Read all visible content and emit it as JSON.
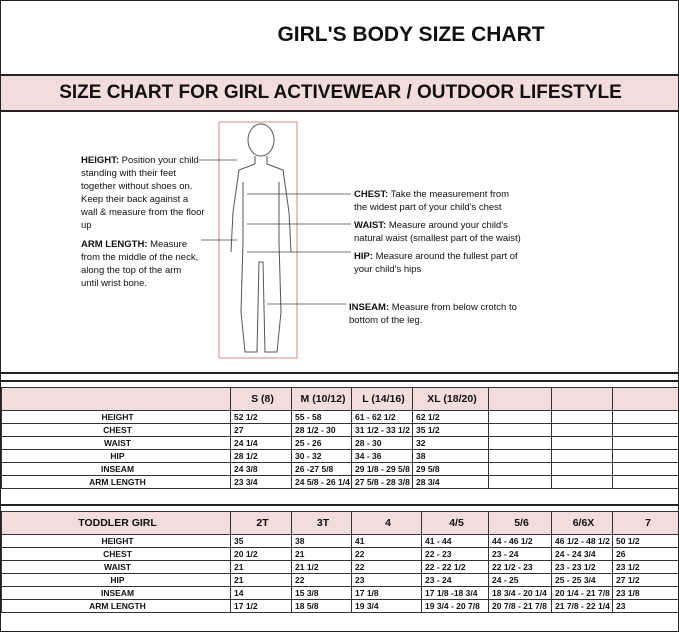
{
  "title": "GIRL'S BODY SIZE CHART",
  "banner": "SIZE CHART FOR GIRL ACTIVEWEAR / OUTDOOR LIFESTYLE",
  "notes": {
    "height": {
      "label": "HEIGHT:",
      "text": "Position your child standing with their feet together without shoes on. Keep their back against a wall & measure from the floor up"
    },
    "arm": {
      "label": "ARM LENGTH:",
      "text": "Measure from the middle of the neck, along the top of the arm until wrist bone."
    },
    "chest": {
      "label": "CHEST:",
      "text": "Take the measurement from the widest part of your child's chest"
    },
    "waist": {
      "label": "WAIST:",
      "text": "Measure around your child's natural waist (smallest part of the waist)"
    },
    "hip": {
      "label": "HIP:",
      "text": "Measure around the fullest part of your child's hips"
    },
    "inseam": {
      "label": "INSEAM:",
      "text": "Measure from below crotch to bottom of the leg."
    }
  },
  "girl_table": {
    "headers": [
      "",
      "S (8)",
      "M (10/12)",
      "L (14/16)",
      "XL (18/20)",
      "",
      "",
      ""
    ],
    "rows": [
      [
        "HEIGHT",
        "52 1/2",
        "55 - 58",
        "61 - 62 1/2",
        "62 1/2",
        "",
        "",
        ""
      ],
      [
        "CHEST",
        "27",
        "28 1/2 - 30",
        "31 1/2 - 33 1/2",
        "35 1/2",
        "",
        "",
        ""
      ],
      [
        "WAIST",
        "24 1/4",
        "25 - 26",
        "28 - 30",
        "32",
        "",
        "",
        ""
      ],
      [
        "HIP",
        "28 1/2",
        "30 - 32",
        "34 - 36",
        "38",
        "",
        "",
        ""
      ],
      [
        "INSEAM",
        "24 3/8",
        "26 -27 5/8",
        "29 1/8 - 29 5/8",
        "29 5/8",
        "",
        "",
        ""
      ],
      [
        "ARM LENGTH",
        "23 3/4",
        "24 5/8 - 26 1/4",
        "27 5/8 - 28 3/8",
        "28 3/4",
        "",
        "",
        ""
      ]
    ]
  },
  "toddler_table": {
    "headers": [
      "TODDLER GIRL",
      "2T",
      "3T",
      "4",
      "4/5",
      "5/6",
      "6/6X",
      "7"
    ],
    "rows": [
      [
        "HEIGHT",
        "35",
        "38",
        "41",
        "41 - 44",
        "44 - 46 1/2",
        "46 1/2 - 48 1/2",
        "50 1/2"
      ],
      [
        "CHEST",
        "20 1/2",
        "21",
        "22",
        "22 - 23",
        "23 - 24",
        "24 - 24 3/4",
        "26"
      ],
      [
        "WAIST",
        "21",
        "21 1/2",
        "22",
        "22 - 22 1/2",
        "22 1/2 - 23",
        "23 - 23 1/2",
        "23 1/2"
      ],
      [
        "HIP",
        "21",
        "22",
        "23",
        "23 - 24",
        "24 - 25",
        "25 - 25 3/4",
        "27 1/2"
      ],
      [
        "INSEAM",
        "14",
        "15 3/8",
        "17 1/8",
        "17 1/8 -18 3/4",
        "18 3/4 - 20 1/4",
        "20 1/4 - 21 7/8",
        "23 1/8"
      ],
      [
        "ARM LENGTH",
        "17 1/2",
        "18 5/8",
        "19 3/4",
        "19 3/4 - 20 7/8",
        "20 7/8 - 21 7/8",
        "21 7/8 - 22 1/4",
        "23"
      ]
    ]
  }
}
